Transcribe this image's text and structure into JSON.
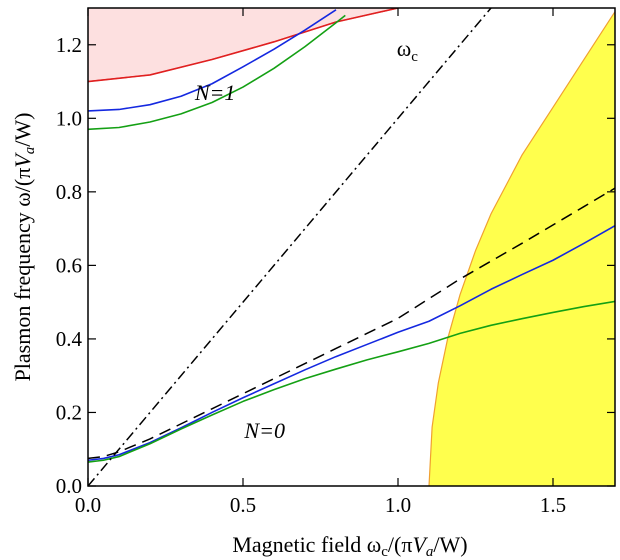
{
  "chart_data": {
    "type": "line",
    "title": "",
    "xlabel": {
      "prefix": "Magnetic field  ω",
      "sub": "c",
      "mid": "/(π",
      "italic": "V",
      "italic_sub": "a",
      "tail": "/W)"
    },
    "ylabel": {
      "prefix": "Plasmon frequency  ω/(π",
      "italic": "V",
      "italic_sub": "a",
      "tail": "/W)"
    },
    "xlim": [
      0.0,
      1.7
    ],
    "ylim": [
      0.0,
      1.3
    ],
    "xticks": [
      0.0,
      0.5,
      1.0,
      1.5
    ],
    "xtick_labels": [
      "0.0",
      "0.5",
      "1.0",
      "1.5"
    ],
    "yticks": [
      0.0,
      0.2,
      0.4,
      0.6,
      0.8,
      1.0,
      1.2
    ],
    "ytick_labels": [
      "0.0",
      "0.2",
      "0.4",
      "0.6",
      "0.8",
      "1.0",
      "1.2"
    ],
    "grid": false,
    "legend": null,
    "colors": {
      "red": "#e02020",
      "blue": "#1428e0",
      "green": "#14a014",
      "pink_fill": "#fde0e0",
      "yellow_fill": "#ffff4d",
      "yellow_edge": "#f0a030",
      "black": "#000000"
    },
    "annotations": [
      {
        "id": "wc",
        "text": "ω",
        "sub": "c",
        "x": 1.03,
        "y": 1.17
      },
      {
        "id": "n1",
        "text": "N=1",
        "x": 0.41,
        "y": 1.05
      },
      {
        "id": "n0",
        "text": "N=0",
        "x": 0.57,
        "y": 0.13
      }
    ],
    "series": [
      {
        "id": "red-n1",
        "color": "red",
        "dash": "solid",
        "x": [
          0.0,
          0.2,
          0.4,
          0.6,
          0.8,
          1.0
        ],
        "y": [
          1.1,
          1.118,
          1.16,
          1.208,
          1.262,
          1.3
        ]
      },
      {
        "id": "blue-n1",
        "color": "blue",
        "dash": "solid",
        "x": [
          0.0,
          0.1,
          0.2,
          0.3,
          0.4,
          0.5,
          0.6,
          0.7,
          0.8
        ],
        "y": [
          1.02,
          1.024,
          1.037,
          1.06,
          1.094,
          1.14,
          1.188,
          1.24,
          1.295
        ]
      },
      {
        "id": "green-n1",
        "color": "green",
        "dash": "solid",
        "x": [
          0.0,
          0.1,
          0.2,
          0.3,
          0.4,
          0.5,
          0.6,
          0.7,
          0.8,
          0.83
        ],
        "y": [
          0.97,
          0.975,
          0.99,
          1.012,
          1.043,
          1.085,
          1.136,
          1.195,
          1.26,
          1.28
        ]
      },
      {
        "id": "blue-n0",
        "color": "blue",
        "dash": "solid",
        "x": [
          0.0,
          0.05,
          0.1,
          0.2,
          0.3,
          0.4,
          0.5,
          0.6,
          0.7,
          0.8,
          0.9,
          1.0,
          1.1,
          1.2,
          1.3,
          1.4,
          1.5,
          1.6,
          1.7
        ],
        "y": [
          0.07,
          0.075,
          0.085,
          0.118,
          0.158,
          0.2,
          0.24,
          0.278,
          0.316,
          0.352,
          0.385,
          0.418,
          0.448,
          0.49,
          0.535,
          0.575,
          0.614,
          0.66,
          0.708
        ]
      },
      {
        "id": "green-n0",
        "color": "green",
        "dash": "solid",
        "x": [
          0.0,
          0.05,
          0.1,
          0.2,
          0.3,
          0.4,
          0.5,
          0.6,
          0.7,
          0.8,
          0.9,
          1.0,
          1.1,
          1.2,
          1.3,
          1.4,
          1.5,
          1.6,
          1.7
        ],
        "y": [
          0.065,
          0.07,
          0.08,
          0.115,
          0.155,
          0.193,
          0.23,
          0.262,
          0.292,
          0.318,
          0.343,
          0.365,
          0.388,
          0.415,
          0.437,
          0.455,
          0.472,
          0.488,
          0.502
        ]
      },
      {
        "id": "dashed-asymptote",
        "color": "black",
        "dash": "dash",
        "x": [
          0.0,
          0.05,
          0.1,
          0.2,
          0.4,
          0.6,
          0.8,
          1.0,
          1.2,
          1.4,
          1.6,
          1.7
        ],
        "y": [
          0.075,
          0.08,
          0.093,
          0.128,
          0.21,
          0.292,
          0.374,
          0.456,
          0.563,
          0.66,
          0.76,
          0.81
        ]
      },
      {
        "id": "omega-c",
        "color": "black",
        "dash": "dashdot",
        "x": [
          0.0,
          1.3
        ],
        "y": [
          0.0,
          1.3
        ]
      }
    ],
    "regions": [
      {
        "id": "pink-region",
        "fill": "pink_fill",
        "stroke": "red",
        "x": [
          0.0,
          0.2,
          0.4,
          0.6,
          0.8,
          1.0
        ],
        "y": [
          1.1,
          1.118,
          1.16,
          1.208,
          1.262,
          1.3
        ]
      },
      {
        "id": "yellow-region",
        "fill": "yellow_fill",
        "stroke": "yellow_edge",
        "x": [
          1.1,
          1.11,
          1.13,
          1.16,
          1.2,
          1.25,
          1.3,
          1.4,
          1.5,
          1.6,
          1.7
        ],
        "y": [
          0.0,
          0.16,
          0.28,
          0.4,
          0.52,
          0.64,
          0.74,
          0.9,
          1.03,
          1.16,
          1.29
        ]
      }
    ]
  }
}
